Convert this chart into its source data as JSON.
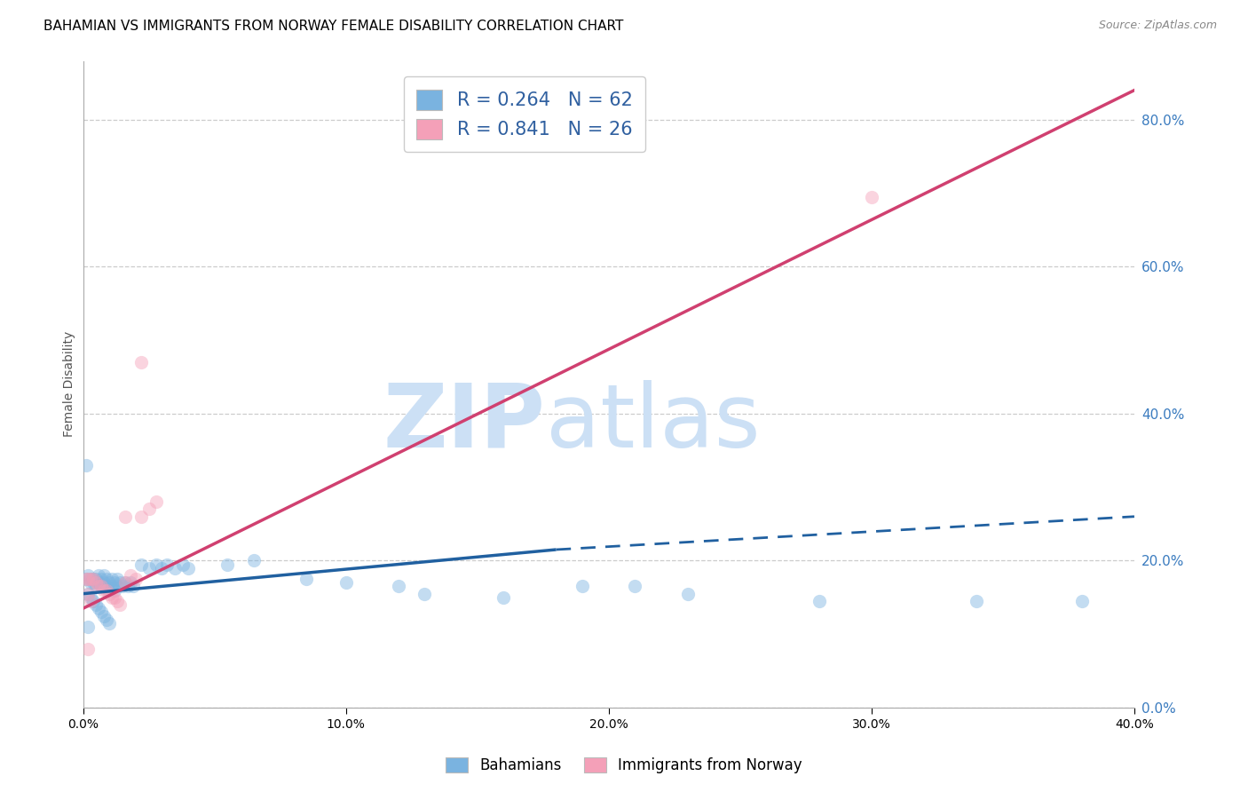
{
  "title": "BAHAMIAN VS IMMIGRANTS FROM NORWAY FEMALE DISABILITY CORRELATION CHART",
  "source": "Source: ZipAtlas.com",
  "ylabel_left": "Female Disability",
  "watermark": "ZIPatlas",
  "legend_entries": [
    {
      "label": "R = 0.264   N = 62",
      "color": "#a8c8f0"
    },
    {
      "label": "R = 0.841   N = 26",
      "color": "#f5b8c8"
    }
  ],
  "legend_labels": [
    "Bahamians",
    "Immigrants from Norway"
  ],
  "xlim": [
    0.0,
    0.4
  ],
  "ylim": [
    0.0,
    0.88
  ],
  "yticks_right": [
    0.0,
    0.2,
    0.4,
    0.6,
    0.8
  ],
  "xticks": [
    0.0,
    0.1,
    0.2,
    0.3,
    0.4
  ],
  "blue_scatter": [
    [
      0.001,
      0.175
    ],
    [
      0.002,
      0.18
    ],
    [
      0.003,
      0.175
    ],
    [
      0.003,
      0.17
    ],
    [
      0.004,
      0.175
    ],
    [
      0.004,
      0.17
    ],
    [
      0.005,
      0.175
    ],
    [
      0.005,
      0.165
    ],
    [
      0.006,
      0.18
    ],
    [
      0.006,
      0.17
    ],
    [
      0.007,
      0.175
    ],
    [
      0.007,
      0.165
    ],
    [
      0.008,
      0.18
    ],
    [
      0.008,
      0.17
    ],
    [
      0.009,
      0.175
    ],
    [
      0.009,
      0.165
    ],
    [
      0.01,
      0.17
    ],
    [
      0.01,
      0.16
    ],
    [
      0.011,
      0.175
    ],
    [
      0.011,
      0.165
    ],
    [
      0.012,
      0.17
    ],
    [
      0.012,
      0.16
    ],
    [
      0.013,
      0.175
    ],
    [
      0.013,
      0.165
    ],
    [
      0.014,
      0.17
    ],
    [
      0.015,
      0.165
    ],
    [
      0.016,
      0.17
    ],
    [
      0.017,
      0.165
    ],
    [
      0.018,
      0.17
    ],
    [
      0.019,
      0.165
    ],
    [
      0.002,
      0.155
    ],
    [
      0.003,
      0.15
    ],
    [
      0.004,
      0.145
    ],
    [
      0.005,
      0.14
    ],
    [
      0.006,
      0.135
    ],
    [
      0.007,
      0.13
    ],
    [
      0.008,
      0.125
    ],
    [
      0.009,
      0.12
    ],
    [
      0.01,
      0.115
    ],
    [
      0.002,
      0.11
    ],
    [
      0.001,
      0.33
    ],
    [
      0.022,
      0.195
    ],
    [
      0.025,
      0.19
    ],
    [
      0.028,
      0.195
    ],
    [
      0.03,
      0.19
    ],
    [
      0.032,
      0.195
    ],
    [
      0.035,
      0.19
    ],
    [
      0.038,
      0.195
    ],
    [
      0.04,
      0.19
    ],
    [
      0.055,
      0.195
    ],
    [
      0.065,
      0.2
    ],
    [
      0.085,
      0.175
    ],
    [
      0.1,
      0.17
    ],
    [
      0.12,
      0.165
    ],
    [
      0.13,
      0.155
    ],
    [
      0.16,
      0.15
    ],
    [
      0.19,
      0.165
    ],
    [
      0.21,
      0.165
    ],
    [
      0.23,
      0.155
    ],
    [
      0.28,
      0.145
    ],
    [
      0.34,
      0.145
    ],
    [
      0.38,
      0.145
    ]
  ],
  "pink_scatter": [
    [
      0.001,
      0.175
    ],
    [
      0.002,
      0.175
    ],
    [
      0.003,
      0.175
    ],
    [
      0.004,
      0.175
    ],
    [
      0.005,
      0.17
    ],
    [
      0.006,
      0.165
    ],
    [
      0.007,
      0.165
    ],
    [
      0.008,
      0.16
    ],
    [
      0.009,
      0.16
    ],
    [
      0.01,
      0.155
    ],
    [
      0.011,
      0.15
    ],
    [
      0.012,
      0.15
    ],
    [
      0.013,
      0.145
    ],
    [
      0.014,
      0.14
    ],
    [
      0.002,
      0.155
    ],
    [
      0.003,
      0.145
    ],
    [
      0.016,
      0.17
    ],
    [
      0.018,
      0.18
    ],
    [
      0.02,
      0.175
    ],
    [
      0.022,
      0.26
    ],
    [
      0.025,
      0.27
    ],
    [
      0.028,
      0.28
    ],
    [
      0.016,
      0.26
    ],
    [
      0.022,
      0.47
    ],
    [
      0.3,
      0.695
    ],
    [
      0.002,
      0.08
    ]
  ],
  "blue_line_solid": [
    [
      0.0,
      0.155
    ],
    [
      0.18,
      0.215
    ]
  ],
  "blue_line_dash": [
    [
      0.18,
      0.215
    ],
    [
      0.4,
      0.26
    ]
  ],
  "pink_line": [
    [
      0.0,
      0.135
    ],
    [
      0.4,
      0.84
    ]
  ],
  "blue_scatter_color": "#7ab3e0",
  "pink_scatter_color": "#f4a0b8",
  "blue_line_color": "#2060a0",
  "pink_line_color": "#d04070",
  "grid_color": "#cccccc",
  "background_color": "#ffffff",
  "watermark_color": "#cce0f5",
  "title_fontsize": 11,
  "axis_label_fontsize": 10,
  "tick_fontsize": 10,
  "scatter_size": 120,
  "scatter_alpha": 0.45
}
